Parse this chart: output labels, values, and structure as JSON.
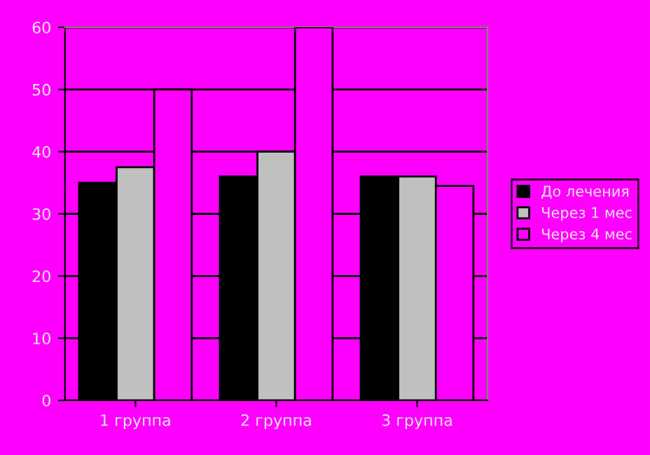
{
  "chart_data": {
    "type": "bar",
    "categories": [
      "1 группа",
      "2 группа",
      "3 группа"
    ],
    "series": [
      {
        "name": "До лечения",
        "color": "#000000",
        "values": [
          35,
          36,
          36
        ]
      },
      {
        "name": "Через 1 мес",
        "color": "#c0c0c0",
        "values": [
          37.5,
          40,
          36
        ]
      },
      {
        "name": "Через 4 мес",
        "color": "#ff00ff",
        "values": [
          50,
          60,
          34.5
        ]
      }
    ],
    "ylim": [
      0,
      60
    ],
    "yticks": [
      0,
      10,
      20,
      30,
      40,
      50,
      60
    ],
    "grid": "y",
    "legend": "right"
  }
}
